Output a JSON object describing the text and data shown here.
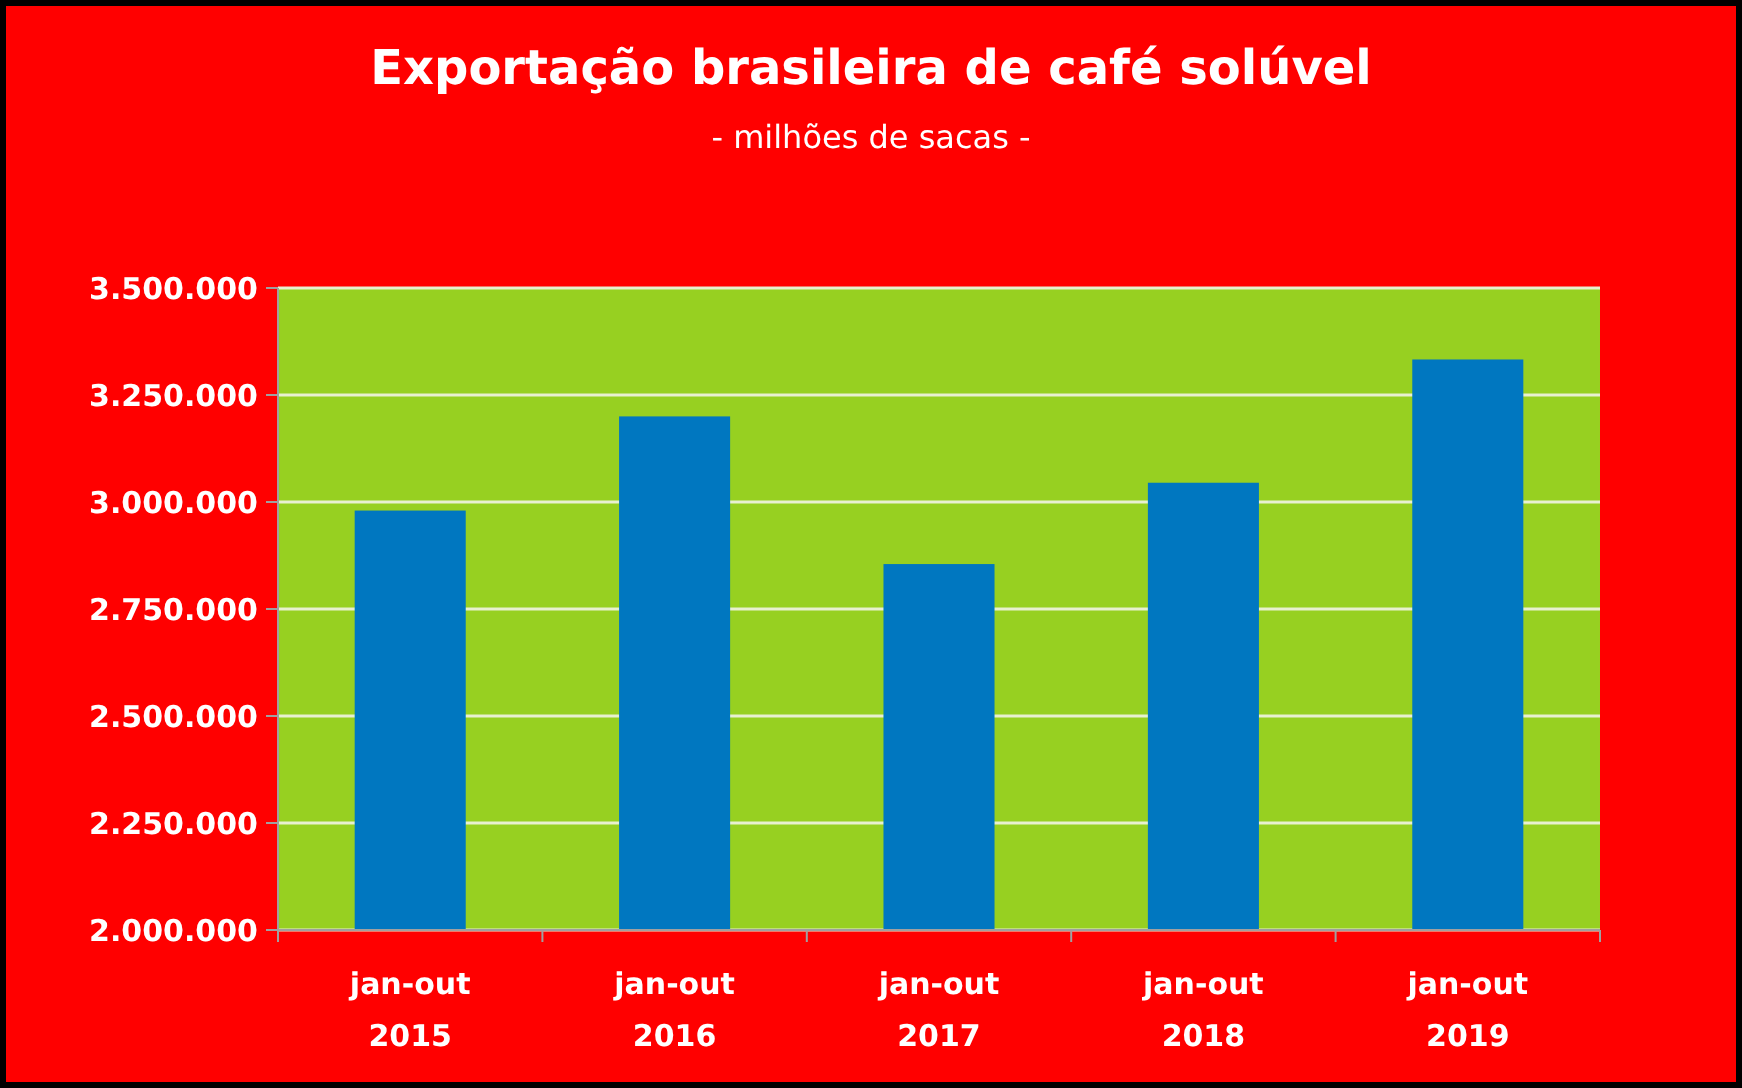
{
  "chart_data": {
    "type": "bar",
    "title": "Exportação brasileira de café solúvel",
    "subtitle": "- milhões de sacas -",
    "categories": [
      "jan-out 2015",
      "jan-out 2016",
      "jan-out 2017",
      "jan-out 2018",
      "jan-out 2019"
    ],
    "values": [
      2980000,
      3200000,
      2855000,
      3045000,
      3333000
    ],
    "color": "#0077c0",
    "ylim": [
      2000000,
      3500000
    ],
    "yticks": [
      {
        "value": 2000000,
        "label": "2.000.000"
      },
      {
        "value": 2250000,
        "label": "2.250.000"
      },
      {
        "value": 2500000,
        "label": "2.500.000"
      },
      {
        "value": 2750000,
        "label": "2.750.000"
      },
      {
        "value": 3000000,
        "label": "3.000.000"
      },
      {
        "value": 3250000,
        "label": "3.250.000"
      },
      {
        "value": 3500000,
        "label": "3.500.000"
      }
    ],
    "grid": "y"
  }
}
